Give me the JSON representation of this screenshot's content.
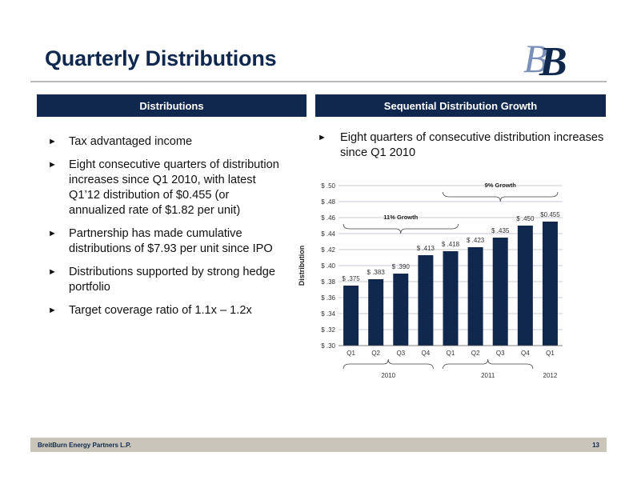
{
  "page": {
    "title": "Quarterly Distributions",
    "logo_letters": "BB"
  },
  "left_header": "Distributions",
  "right_header": "Sequential Distribution Growth",
  "bullets": [
    "Tax advantaged income",
    "Eight consecutive quarters of distribution increases since Q1 2010, with latest Q1’12 distribution of $0.455 (or annualized rate of $1.82 per unit)",
    "Partnership has made cumulative distributions of $7.93 per unit since IPO",
    "Distributions supported by strong hedge portfolio",
    "Target coverage ratio of 1.1x – 1.2x"
  ],
  "right_bullet": "Eight quarters of consecutive distribution increases since Q1 2010",
  "bullet_glyph": "►",
  "chart_data": {
    "type": "bar",
    "categories": [
      "Q1",
      "Q2",
      "Q3",
      "Q4",
      "Q1",
      "Q2",
      "Q3",
      "Q4",
      "Q1"
    ],
    "values": [
      0.375,
      0.383,
      0.39,
      0.413,
      0.418,
      0.423,
      0.435,
      0.45,
      0.455
    ],
    "data_labels": [
      "$ .375",
      "$ .383",
      "$ .390",
      "$ .413",
      "$ .418",
      "$ .423",
      "$ .435",
      "$ .450",
      "$0.455"
    ],
    "ylabel": "Distribution",
    "ylim": [
      0.3,
      0.5
    ],
    "yticks": [
      0.3,
      0.32,
      0.34,
      0.36,
      0.38,
      0.4,
      0.42,
      0.44,
      0.46,
      0.48,
      0.5
    ],
    "ytick_labels": [
      "$ .30",
      "$ .32",
      "$ .34",
      "$ .36",
      "$ .38",
      "$ .40",
      "$ .42",
      "$ .44",
      "$ .46",
      "$ .48",
      "$ .50"
    ],
    "year_groups": [
      {
        "label": "2010",
        "from": 0,
        "to": 3
      },
      {
        "label": "2011",
        "from": 4,
        "to": 7
      },
      {
        "label": "2012",
        "from": 8,
        "to": 8
      }
    ],
    "annotations": [
      {
        "label": "11% Growth",
        "from": 0,
        "to": 4
      },
      {
        "label": "9% Growth",
        "from": 4,
        "to": 8
      }
    ],
    "grid": true,
    "bar_color": "#10284e",
    "grid_color": "#8a97a8"
  },
  "footer": {
    "company": "BreitBurn Energy Partners L.P.",
    "page_number": "13"
  }
}
